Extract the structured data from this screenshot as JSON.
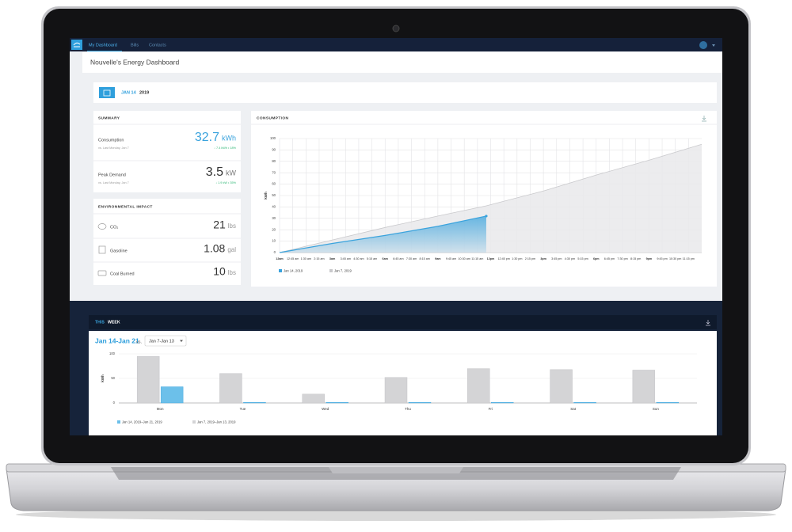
{
  "nav": {
    "tabs": [
      "My Dashboard",
      "Bills",
      "Contacts"
    ]
  },
  "header": {
    "title": "Nouvelle's Energy Dashboard"
  },
  "date_bar": {
    "month_day": "JAN 14",
    "year": "2019"
  },
  "summary": {
    "title": "SUMMARY",
    "rows": [
      {
        "label": "Consumption",
        "comparison": "vs. Last Monday, Jan 7",
        "value": "32.7",
        "unit": "kWh",
        "change": "↓ 7.4 kWh • 18%"
      },
      {
        "label": "Peak Demand",
        "comparison": "vs. Last Monday, Jan 7",
        "value": "3.5",
        "unit": "kW",
        "change": "↓ 1.9 kW • 35%"
      }
    ]
  },
  "environmental_impact": {
    "title": "ENVIRONMENTAL IMPACT",
    "rows": [
      {
        "label": "CO₂",
        "value": "21",
        "unit": "lbs"
      },
      {
        "label": "Gasoline",
        "value": "1.08",
        "unit": "gal"
      },
      {
        "label": "Coal Burned",
        "value": "10",
        "unit": "lbs"
      }
    ]
  },
  "this_week": {
    "title": [
      "THIS",
      "WEEK"
    ],
    "range": "Jan 14-Jan 21",
    "vs": "vs.",
    "compare_select": "Jan 7-Jan 13"
  },
  "chart_data": [
    {
      "type": "line",
      "title": "CONSUMPTION",
      "ylabel": "kWh",
      "x": [
        0,
        3,
        6,
        9,
        11.75,
        15,
        18,
        21,
        24
      ],
      "series": [
        {
          "name": "Jan 14, 2019",
          "color": "#3aa3dd",
          "values": [
            0,
            8,
            15,
            23,
            32,
            null,
            null,
            null,
            null
          ]
        },
        {
          "name": "Jan 7, 2019",
          "color": "#c9c9cc",
          "values": [
            0,
            11,
            22,
            32,
            41,
            54,
            68,
            81,
            95
          ]
        }
      ],
      "xlim": [
        0,
        24
      ],
      "xticks": [
        {
          "value": 0,
          "label": "12am"
        },
        {
          "value": 0.75,
          "label": "12:45 am"
        },
        {
          "value": 1.5,
          "label": "1:30 am"
        },
        {
          "value": 2.25,
          "label": "2:15 am"
        },
        {
          "value": 3,
          "label": "3am"
        },
        {
          "value": 3.75,
          "label": "3:45 am"
        },
        {
          "value": 4.5,
          "label": "4:30 am"
        },
        {
          "value": 5.25,
          "label": "5:15 am"
        },
        {
          "value": 6,
          "label": "6am"
        },
        {
          "value": 6.75,
          "label": "6:45 am"
        },
        {
          "value": 7.5,
          "label": "7:30 am"
        },
        {
          "value": 8.25,
          "label": "8:15 am"
        },
        {
          "value": 9,
          "label": "9am"
        },
        {
          "value": 9.75,
          "label": "9:45 am"
        },
        {
          "value": 10.5,
          "label": "10:30 am"
        },
        {
          "value": 11.25,
          "label": "11:15 am"
        },
        {
          "value": 12,
          "label": "12pm"
        },
        {
          "value": 12.75,
          "label": "12:45 pm"
        },
        {
          "value": 13.5,
          "label": "1:30 pm"
        },
        {
          "value": 14.25,
          "label": "2:15 pm"
        },
        {
          "value": 15,
          "label": "3pm"
        },
        {
          "value": 15.75,
          "label": "3:45 pm"
        },
        {
          "value": 16.5,
          "label": "4:30 pm"
        },
        {
          "value": 17.25,
          "label": "5:15 pm"
        },
        {
          "value": 18,
          "label": "6pm"
        },
        {
          "value": 18.75,
          "label": "6:45 pm"
        },
        {
          "value": 19.5,
          "label": "7:30 pm"
        },
        {
          "value": 20.25,
          "label": "8:15 pm"
        },
        {
          "value": 21,
          "label": "9pm"
        },
        {
          "value": 21.75,
          "label": "9:45 pm"
        },
        {
          "value": 22.5,
          "label": "10:30 pm"
        },
        {
          "value": 23.25,
          "label": "11:15 pm"
        }
      ],
      "ylim": [
        0,
        100
      ],
      "yticks": [
        0,
        10,
        20,
        30,
        40,
        50,
        60,
        70,
        80,
        90,
        100
      ],
      "grid": true
    },
    {
      "type": "bar",
      "ylabel": "kWh",
      "categories": [
        "Mon",
        "Tue",
        "Wed",
        "Thu",
        "Fri",
        "Sat",
        "Sun"
      ],
      "series": [
        {
          "name": "Jan 7, 2019–Jan 13, 2019",
          "color": "#d4d4d6",
          "values": [
            95,
            60,
            18,
            52,
            70,
            68,
            67
          ]
        },
        {
          "name": "Jan 14, 2019–Jan 21, 2019",
          "color": "#6cc0ea",
          "values": [
            33,
            0,
            0,
            0,
            0,
            0,
            0
          ]
        }
      ],
      "ylim": [
        0,
        100
      ],
      "yticks": [
        0,
        50,
        100
      ],
      "grid": true
    }
  ]
}
